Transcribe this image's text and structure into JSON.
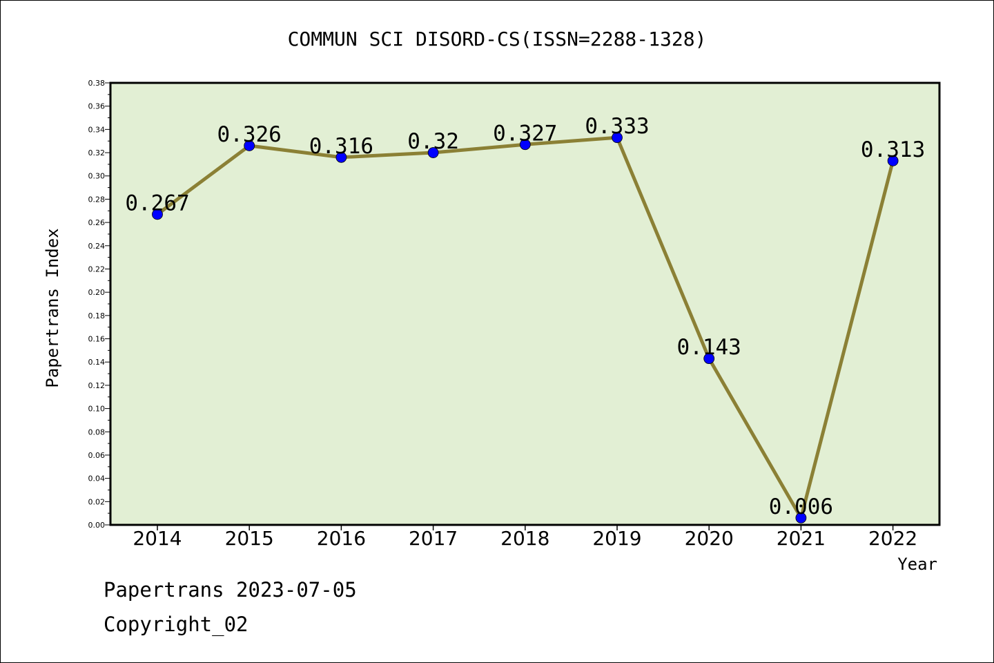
{
  "chart_data": {
    "type": "line",
    "title": "COMMUN SCI DISORD-CS(ISSN=2288-1328)",
    "xlabel": "Year",
    "ylabel": "Papertrans Index",
    "categories": [
      "2014",
      "2015",
      "2016",
      "2017",
      "2018",
      "2019",
      "2020",
      "2021",
      "2022"
    ],
    "series": [
      {
        "values": [
          0.267,
          0.326,
          0.316,
          0.32,
          0.327,
          0.333,
          0.143,
          0.006,
          0.313
        ],
        "labels": [
          "0.267",
          "0.326",
          "0.316",
          "0.32",
          "0.327",
          "0.333",
          "0.143",
          "0.006",
          "0.313"
        ]
      }
    ],
    "ylim": [
      0,
      0.38
    ],
    "y_ticks": [
      "0.00",
      "0.02",
      "0.04",
      "0.06",
      "0.08",
      "0.10",
      "0.12",
      "0.14",
      "0.16",
      "0.18",
      "0.20",
      "0.22",
      "0.24",
      "0.26",
      "0.28",
      "0.30",
      "0.32",
      "0.34",
      "0.36",
      "0.38"
    ],
    "grid": false,
    "legend": "none",
    "colors": {
      "plot_background": "#e2efd4",
      "line": "#8b8035",
      "marker": "#0000ff"
    }
  },
  "footer": {
    "line1": "Papertrans 2023-07-05",
    "line2": "Copyright_02"
  }
}
